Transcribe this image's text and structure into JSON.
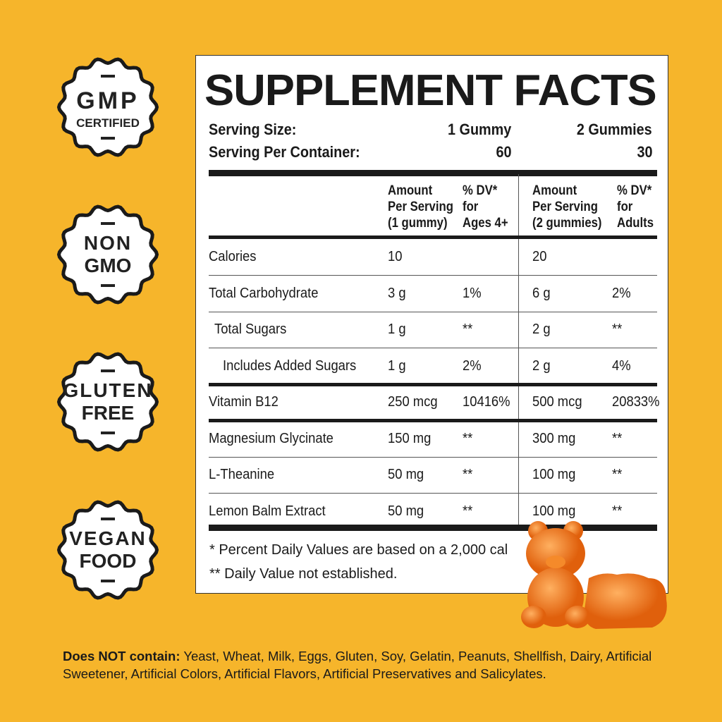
{
  "badges": [
    {
      "l1": "GMP",
      "l2": "CERTIFIED"
    },
    {
      "l1": "NON",
      "l2": "GMO"
    },
    {
      "l1": "GLUTEN",
      "l2": "FREE"
    },
    {
      "l1": "VEGAN",
      "l2": "FOOD"
    }
  ],
  "title": "SUPPLEMENT FACTS",
  "serving": {
    "size_label": "Serving Size:",
    "size1": "1 Gummy",
    "size2": "2 Gummies",
    "per_label": "Serving Per Container:",
    "per1": "60",
    "per2": "30"
  },
  "headers": {
    "amt1": [
      "Amount",
      "Per Serving",
      "(1 gummy)"
    ],
    "dv1": [
      "% DV*",
      "for",
      "Ages 4+"
    ],
    "amt2": [
      "Amount",
      "Per Serving",
      "(2 gummies)"
    ],
    "dv2": [
      "% DV*",
      "for",
      "Adults"
    ]
  },
  "rows": [
    {
      "name": "Calories",
      "a1": "10",
      "d1": "",
      "a2": "20",
      "d2": ""
    },
    {
      "name": "Total Carbohydrate",
      "a1": "3 g",
      "d1": "1%",
      "a2": "6 g",
      "d2": "2%"
    },
    {
      "name": "Total Sugars",
      "a1": "1 g",
      "d1": "**",
      "a2": "2 g",
      "d2": "**"
    },
    {
      "name": "Includes Added Sugars",
      "a1": "1 g",
      "d1": "2%",
      "a2": "2 g",
      "d2": "4%"
    },
    {
      "name": "Vitamin B12",
      "a1": "250 mcg",
      "d1": "10416%",
      "a2": "500 mcg",
      "d2": "20833%"
    },
    {
      "name": "Magnesium Glycinate",
      "a1": "150 mg",
      "d1": "**",
      "a2": "300 mg",
      "d2": "**"
    },
    {
      "name": "L-Theanine",
      "a1": "50 mg",
      "d1": "**",
      "a2": "100 mg",
      "d2": "**"
    },
    {
      "name": "Lemon Balm Extract",
      "a1": "50 mg",
      "d1": "**",
      "a2": "100 mg",
      "d2": "**"
    }
  ],
  "footnotes": [
    "* Percent Daily Values are based on a 2,000 cal",
    "** Daily Value not established."
  ],
  "bottom": {
    "label": "Does NOT contain:",
    "text": " Yeast, Wheat, Milk, Eggs, Gluten, Soy, Gelatin, Peanuts, Shellfish, Dairy, Artificial Sweetener, Artificial Colors, Artificial Flavors, Artificial Preservatives and Salicylates."
  },
  "colors": {
    "background": "#F6B52B",
    "gummy": "#F07A1E"
  }
}
